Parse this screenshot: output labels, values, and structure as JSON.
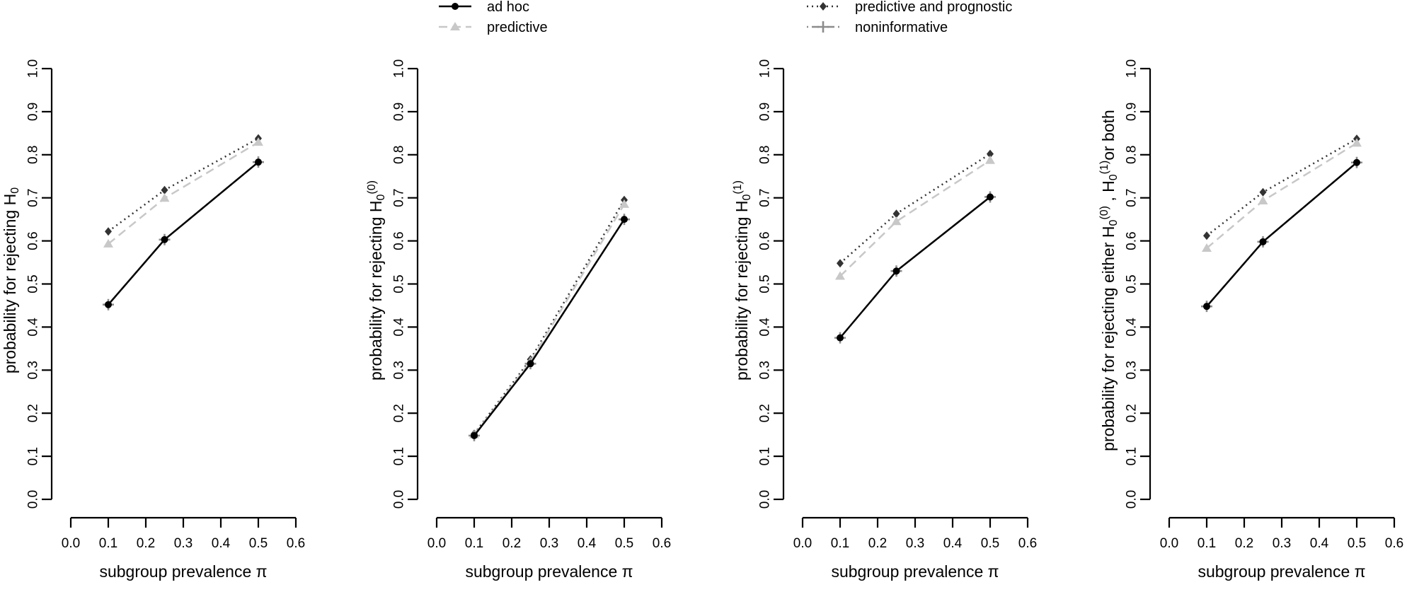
{
  "legend": {
    "entries": [
      {
        "label": "ad hoc",
        "color": "#000000",
        "dash": "solid",
        "marker": "circle"
      },
      {
        "label": "predictive",
        "color": "#c8c8c8",
        "dash": "dashed",
        "marker": "triangle"
      },
      {
        "label": "predictive and prognostic",
        "color": "#333333",
        "dash": "dotted",
        "marker": "diamond"
      },
      {
        "label": "noninformative",
        "color": "#8c8c8c",
        "dash": "dotdash",
        "marker": "plus"
      }
    ]
  },
  "chart_data": [
    {
      "type": "line",
      "ylabel": "probability  for rejecting H0",
      "xlabel": "subgroup prevalence π",
      "xlim": [
        0,
        0.6
      ],
      "ylim": [
        0,
        1
      ],
      "xticks": [
        "0.0",
        "0.1",
        "0.2",
        "0.3",
        "0.4",
        "0.5",
        "0.6"
      ],
      "yticks": [
        "0.0",
        "0.1",
        "0.2",
        "0.3",
        "0.4",
        "0.5",
        "0.6",
        "0.7",
        "0.8",
        "0.9",
        "1.0"
      ],
      "x": [
        0.1,
        0.25,
        0.5
      ],
      "series": [
        {
          "name": "ad hoc",
          "values": [
            0.452,
            0.603,
            0.783
          ]
        },
        {
          "name": "predictive",
          "values": [
            0.593,
            0.699,
            0.829
          ]
        },
        {
          "name": "predictive and prognostic",
          "values": [
            0.622,
            0.718,
            0.838
          ]
        },
        {
          "name": "noninformative",
          "values": [
            0.452,
            0.603,
            0.783
          ]
        }
      ]
    },
    {
      "type": "line",
      "ylabel": "probability  for rejecting H0(0)",
      "xlabel": "subgroup prevalence π",
      "xlim": [
        0,
        0.6
      ],
      "ylim": [
        0,
        1
      ],
      "xticks": [
        "0.0",
        "0.1",
        "0.2",
        "0.3",
        "0.4",
        "0.5",
        "0.6"
      ],
      "yticks": [
        "0.0",
        "0.1",
        "0.2",
        "0.3",
        "0.4",
        "0.5",
        "0.6",
        "0.7",
        "0.8",
        "0.9",
        "1.0"
      ],
      "x": [
        0.1,
        0.25,
        0.5
      ],
      "series": [
        {
          "name": "ad hoc",
          "values": [
            0.148,
            0.315,
            0.65
          ]
        },
        {
          "name": "predictive",
          "values": [
            0.15,
            0.32,
            0.685
          ]
        },
        {
          "name": "predictive and prognostic",
          "values": [
            0.152,
            0.325,
            0.695
          ]
        },
        {
          "name": "noninformative",
          "values": [
            0.148,
            0.315,
            0.65
          ]
        }
      ]
    },
    {
      "type": "line",
      "ylabel": "probability  for rejecting H0(1)",
      "xlabel": "subgroup prevalence π",
      "xlim": [
        0,
        0.6
      ],
      "ylim": [
        0,
        1
      ],
      "xticks": [
        "0.0",
        "0.1",
        "0.2",
        "0.3",
        "0.4",
        "0.5",
        "0.6"
      ],
      "yticks": [
        "0.0",
        "0.1",
        "0.2",
        "0.3",
        "0.4",
        "0.5",
        "0.6",
        "0.7",
        "0.8",
        "0.9",
        "1.0"
      ],
      "x": [
        0.1,
        0.25,
        0.5
      ],
      "series": [
        {
          "name": "ad hoc",
          "values": [
            0.375,
            0.53,
            0.702
          ]
        },
        {
          "name": "predictive",
          "values": [
            0.518,
            0.645,
            0.787
          ]
        },
        {
          "name": "predictive and prognostic",
          "values": [
            0.548,
            0.663,
            0.802
          ]
        },
        {
          "name": "noninformative",
          "values": [
            0.375,
            0.53,
            0.702
          ]
        }
      ]
    },
    {
      "type": "line",
      "ylabel": "probability  for rejecting either H0(0) , H0(1) or both",
      "xlabel": "subgroup prevalence π",
      "xlim": [
        0,
        0.6
      ],
      "ylim": [
        0,
        1
      ],
      "xticks": [
        "0.0",
        "0.1",
        "0.2",
        "0.3",
        "0.4",
        "0.5",
        "0.6"
      ],
      "yticks": [
        "0.0",
        "0.1",
        "0.2",
        "0.3",
        "0.4",
        "0.5",
        "0.6",
        "0.7",
        "0.8",
        "0.9",
        "1.0"
      ],
      "x": [
        0.1,
        0.25,
        0.5
      ],
      "series": [
        {
          "name": "ad hoc",
          "values": [
            0.448,
            0.598,
            0.782
          ]
        },
        {
          "name": "predictive",
          "values": [
            0.583,
            0.693,
            0.827
          ]
        },
        {
          "name": "predictive and prognostic",
          "values": [
            0.612,
            0.713,
            0.837
          ]
        },
        {
          "name": "noninformative",
          "values": [
            0.448,
            0.598,
            0.782
          ]
        }
      ]
    }
  ]
}
